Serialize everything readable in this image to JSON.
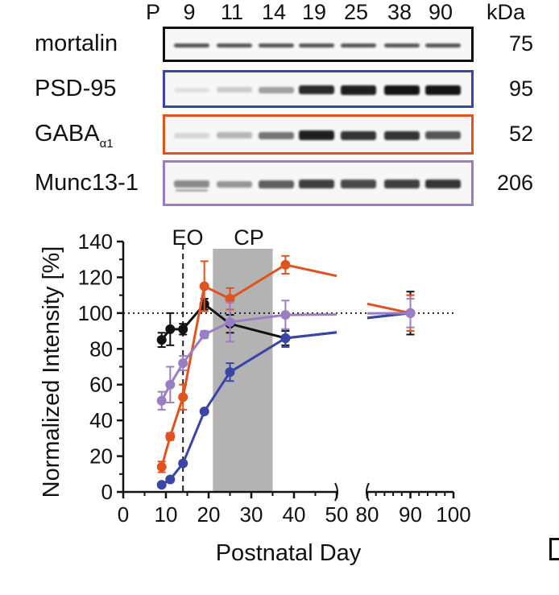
{
  "blot": {
    "header_p": "P",
    "ages": [
      "9",
      "11",
      "14",
      "19",
      "25",
      "38",
      "90"
    ],
    "kda_header": "kDa",
    "rows": [
      {
        "label": "mortalin",
        "sub": "",
        "kda": "75",
        "color": "#111111",
        "intensity": [
          0.7,
          0.7,
          0.7,
          0.7,
          0.7,
          0.7,
          0.7
        ]
      },
      {
        "label": "PSD-95",
        "sub": "",
        "kda": "95",
        "color": "#3a45a8",
        "intensity": [
          0.05,
          0.15,
          0.35,
          0.9,
          0.95,
          1.0,
          1.0
        ]
      },
      {
        "label": "GABA",
        "sub": "α1",
        "kda": "52",
        "color": "#e0531f",
        "intensity": [
          0.1,
          0.25,
          0.55,
          0.95,
          0.85,
          0.85,
          0.7
        ]
      },
      {
        "label": "Munc13-1",
        "sub": "",
        "kda": "206",
        "color": "#9a7ec4",
        "intensity": [
          0.45,
          0.4,
          0.65,
          0.8,
          0.75,
          0.8,
          0.85
        ]
      }
    ]
  },
  "chart_data": {
    "type": "line",
    "xlabel": "Postnatal Day",
    "ylabel": "Normalized Intensity [%]",
    "ylim": [
      0,
      140
    ],
    "yticks": [
      0,
      20,
      40,
      60,
      80,
      100,
      120,
      140
    ],
    "xticks_left": [
      0,
      10,
      20,
      30,
      40,
      50
    ],
    "xticks_right": [
      80,
      90,
      100
    ],
    "x_axis_break": [
      50,
      80
    ],
    "reference_line_y": 100,
    "annotations": [
      {
        "text": "EO",
        "x": 14,
        "kind": "dashed-vertical-line"
      },
      {
        "text": "CP",
        "x_range": [
          21,
          35
        ],
        "kind": "shaded-region"
      }
    ],
    "series": [
      {
        "name": "mortalin",
        "color": "#111111",
        "x": [
          9,
          11,
          14,
          19,
          25,
          38,
          90
        ],
        "y": [
          85,
          91,
          91,
          105,
          94,
          86,
          100
        ],
        "err": [
          4,
          9,
          3,
          3,
          5,
          4,
          12
        ]
      },
      {
        "name": "PSD-95",
        "color": "#3a45a8",
        "x": [
          9,
          11,
          14,
          19,
          25,
          38,
          90
        ],
        "y": [
          4,
          7,
          16,
          45,
          67,
          86,
          100
        ],
        "err": [
          1,
          1,
          1,
          1,
          5,
          5,
          10
        ]
      },
      {
        "name": "GABA α1",
        "color": "#e0531f",
        "x": [
          9,
          11,
          14,
          19,
          25,
          38,
          90
        ],
        "y": [
          14,
          31,
          53,
          115,
          108,
          127,
          100
        ],
        "err": [
          3,
          2,
          7,
          14,
          6,
          5,
          10
        ]
      },
      {
        "name": "Munc13-1",
        "color": "#9a7ec4",
        "x": [
          9,
          11,
          14,
          19,
          25,
          38,
          90
        ],
        "y": [
          51,
          60,
          72,
          88,
          95,
          99,
          100
        ],
        "err": [
          5,
          10,
          4,
          2,
          11,
          8,
          8
        ]
      }
    ]
  }
}
